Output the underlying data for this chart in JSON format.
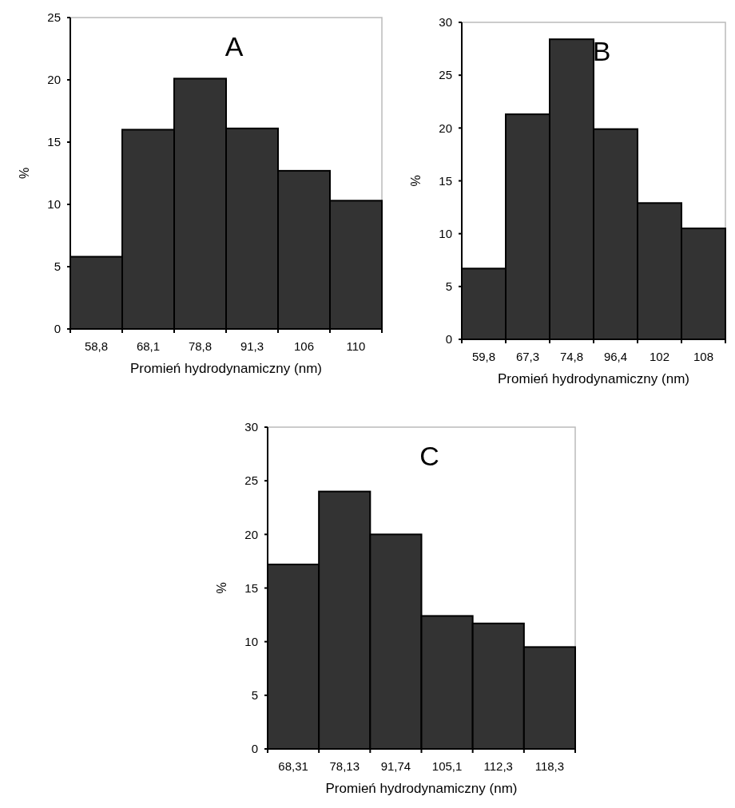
{
  "chart_data": [
    {
      "type": "bar",
      "title": "A",
      "xlabel": "Promień hydrodynamiczny (nm)",
      "ylabel": "%",
      "categories": [
        "58,8",
        "68,1",
        "78,8",
        "91,3",
        "106",
        "110"
      ],
      "values": [
        5.8,
        16,
        20.1,
        16.1,
        12.7,
        10.3
      ],
      "color": "#333333",
      "ylim": [
        0,
        25
      ],
      "yticks": [
        0,
        5,
        10,
        15,
        20,
        25
      ]
    },
    {
      "type": "bar",
      "title": "B",
      "xlabel": "Promień hydrodynamiczny (nm)",
      "ylabel": "%",
      "categories": [
        "59,8",
        "67,3",
        "74,8",
        "96,4",
        "102",
        "108"
      ],
      "values": [
        6.7,
        21.3,
        28.4,
        19.9,
        12.9,
        10.5
      ],
      "color": "#333333",
      "ylim": [
        0,
        30
      ],
      "yticks": [
        0,
        5,
        10,
        15,
        20,
        25,
        30
      ]
    },
    {
      "type": "bar",
      "title": "C",
      "xlabel": "Promień hydrodynamiczny (nm)",
      "ylabel": "%",
      "categories": [
        "68,31",
        "78,13",
        "91,74",
        "105,1",
        "112,3",
        "118,3"
      ],
      "values": [
        17.2,
        24,
        20,
        12.4,
        11.7,
        9.5
      ],
      "color": "#333333",
      "ylim": [
        0,
        30
      ],
      "yticks": [
        0,
        5,
        10,
        15,
        20,
        25,
        30
      ]
    }
  ]
}
